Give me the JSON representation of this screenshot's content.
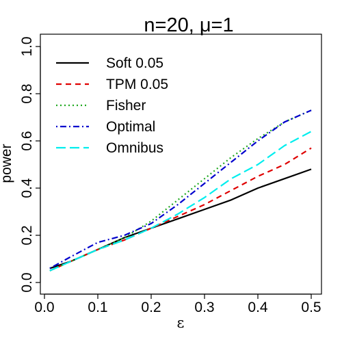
{
  "chart_data": {
    "type": "line",
    "title": "n=20, μ=1",
    "xlabel": "ε",
    "ylabel": "power",
    "xlim": [
      0.0,
      0.5
    ],
    "ylim": [
      0.0,
      1.0
    ],
    "xticks": [
      "0.0",
      "0.1",
      "0.2",
      "0.3",
      "0.4",
      "0.5"
    ],
    "yticks": [
      "0.0",
      "0.2",
      "0.4",
      "0.6",
      "0.8",
      "1.0"
    ],
    "grid": false,
    "legend_position": "top-left",
    "x": [
      0.01,
      0.05,
      0.1,
      0.15,
      0.2,
      0.25,
      0.3,
      0.35,
      0.4,
      0.45,
      0.5
    ],
    "series": [
      {
        "name": "Soft 0.05",
        "color": "#000000",
        "dash": "solid",
        "values": [
          0.06,
          0.09,
          0.14,
          0.19,
          0.23,
          0.27,
          0.31,
          0.35,
          0.4,
          0.44,
          0.48
        ]
      },
      {
        "name": "TPM 0.05",
        "color": "#DF0000",
        "dash": "dashed",
        "values": [
          0.05,
          0.09,
          0.14,
          0.18,
          0.23,
          0.28,
          0.33,
          0.39,
          0.45,
          0.5,
          0.57
        ]
      },
      {
        "name": "Fisher",
        "color": "#1FA81F",
        "dash": "dotted",
        "values": [
          0.05,
          0.09,
          0.14,
          0.19,
          0.26,
          0.35,
          0.44,
          0.53,
          0.61,
          0.68,
          0.73
        ]
      },
      {
        "name": "Optimal",
        "color": "#0000CD",
        "dash": "dotdash",
        "values": [
          0.06,
          0.11,
          0.17,
          0.2,
          0.25,
          0.33,
          0.42,
          0.51,
          0.6,
          0.68,
          0.73
        ]
      },
      {
        "name": "Omnibus",
        "color": "#00EEEE",
        "dash": "longdash",
        "values": [
          0.05,
          0.09,
          0.14,
          0.18,
          0.23,
          0.29,
          0.36,
          0.44,
          0.5,
          0.58,
          0.64
        ]
      }
    ]
  }
}
